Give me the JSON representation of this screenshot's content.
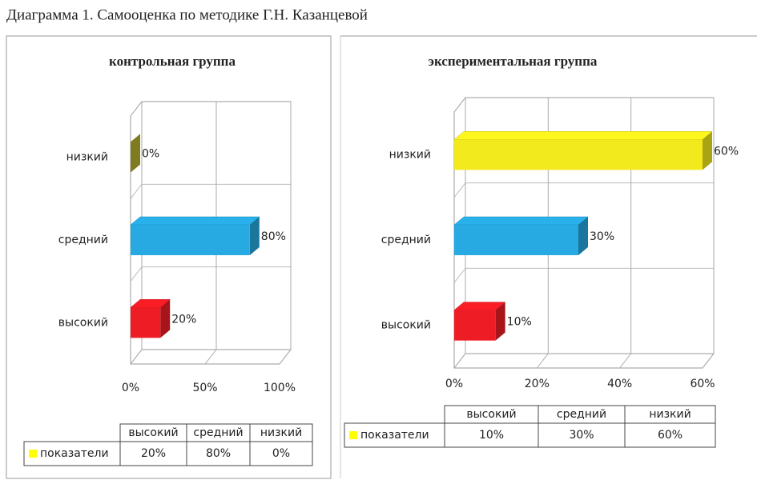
{
  "caption": "Диаграмма 1. Самооценка по методике Г.Н. Казанцевой",
  "chart_data": [
    {
      "type": "bar",
      "orientation": "horizontal",
      "title": "контрольная группа",
      "categories": [
        "высокий",
        "средний",
        "низкий"
      ],
      "series": [
        {
          "name": "показатели",
          "color": "#ffff00",
          "values": [
            20,
            80,
            0
          ],
          "value_labels": [
            "20%",
            "80%",
            "0%"
          ]
        }
      ],
      "bar_colors": [
        "#ee1c24",
        "#27a9e1",
        "#b5b02e"
      ],
      "xlim": [
        0,
        100
      ],
      "xticks": [
        {
          "value": 0,
          "label": "0%"
        },
        {
          "value": 50,
          "label": "50%"
        },
        {
          "value": 100,
          "label": "100%"
        }
      ],
      "grid": true,
      "data_table": true
    },
    {
      "type": "bar",
      "orientation": "horizontal",
      "title": "экспериментальная группа",
      "categories": [
        "высокий",
        "средний",
        "низкий"
      ],
      "series": [
        {
          "name": "показатели",
          "color": "#ffff00",
          "values": [
            10,
            30,
            60
          ],
          "value_labels": [
            "10%",
            "30%",
            "60%"
          ]
        }
      ],
      "bar_colors": [
        "#ee1c24",
        "#27a9e1",
        "#f2ea1c"
      ],
      "xlim": [
        0,
        60
      ],
      "xticks": [
        {
          "value": 0,
          "label": "0%"
        },
        {
          "value": 20,
          "label": "20%"
        },
        {
          "value": 40,
          "label": "40%"
        },
        {
          "value": 60,
          "label": "60%"
        }
      ],
      "grid": true,
      "data_table": true
    }
  ]
}
